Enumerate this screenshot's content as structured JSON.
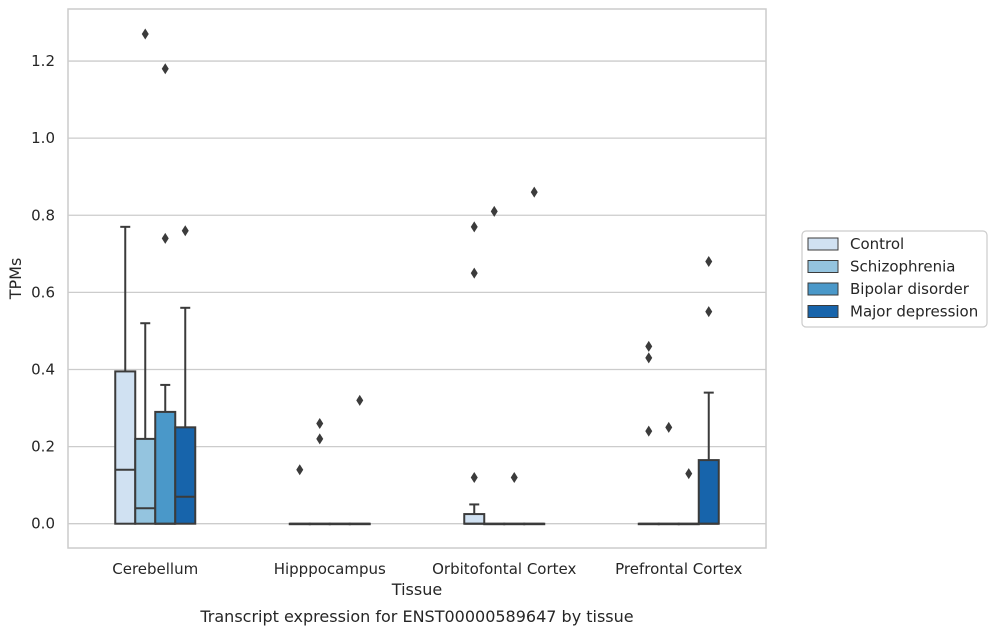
{
  "chart_data": {
    "type": "box",
    "title": "",
    "caption": "Transcript expression for ENST00000589647 by tissue",
    "xlabel": "Tissue",
    "ylabel": "TPMs",
    "ylim": [
      -0.063,
      1.335
    ],
    "yticks": [
      "0.0",
      "0.2",
      "0.4",
      "0.6",
      "0.8",
      "1.0",
      "1.2"
    ],
    "ytick_values": [
      0.0,
      0.2,
      0.4,
      0.6,
      0.8,
      1.0,
      1.2
    ],
    "grid": "horizontal",
    "legend_position": "right",
    "categories": [
      "Cerebellum",
      "Hipppocampus",
      "Orbitofontal Cortex",
      "Prefrontal Cortex"
    ],
    "series": [
      {
        "name": "Control",
        "color": "#d0e1f2",
        "boxes": [
          {
            "q1": 0.0,
            "median": 0.14,
            "q3": 0.395,
            "whisker_low": 0.0,
            "whisker_high": 0.77,
            "outliers": []
          },
          {
            "q1": 0.0,
            "median": 0.0,
            "q3": 0.0,
            "whisker_low": 0.0,
            "whisker_high": 0.0,
            "outliers": [
              0.14
            ]
          },
          {
            "q1": 0.0,
            "median": 0.0,
            "q3": 0.025,
            "whisker_low": 0.0,
            "whisker_high": 0.05,
            "outliers": [
              0.12,
              0.65,
              0.77
            ]
          },
          {
            "q1": 0.0,
            "median": 0.0,
            "q3": 0.0,
            "whisker_low": 0.0,
            "whisker_high": 0.0,
            "outliers": [
              0.24,
              0.43,
              0.46
            ]
          }
        ]
      },
      {
        "name": "Schizophrenia",
        "color": "#94c4df",
        "boxes": [
          {
            "q1": 0.0,
            "median": 0.04,
            "q3": 0.22,
            "whisker_low": 0.0,
            "whisker_high": 0.52,
            "outliers": [
              1.27
            ]
          },
          {
            "q1": 0.0,
            "median": 0.0,
            "q3": 0.0,
            "whisker_low": 0.0,
            "whisker_high": 0.0,
            "outliers": [
              0.22,
              0.26
            ]
          },
          {
            "q1": 0.0,
            "median": 0.0,
            "q3": 0.0,
            "whisker_low": 0.0,
            "whisker_high": 0.0,
            "outliers": [
              0.81
            ]
          },
          {
            "q1": 0.0,
            "median": 0.0,
            "q3": 0.0,
            "whisker_low": 0.0,
            "whisker_high": 0.0,
            "outliers": [
              0.25
            ]
          }
        ]
      },
      {
        "name": "Bipolar disorder",
        "color": "#4a98c9",
        "boxes": [
          {
            "q1": 0.0,
            "median": 0.0,
            "q3": 0.29,
            "whisker_low": 0.0,
            "whisker_high": 0.36,
            "outliers": [
              0.74,
              1.18
            ]
          },
          {
            "q1": 0.0,
            "median": 0.0,
            "q3": 0.0,
            "whisker_low": 0.0,
            "whisker_high": 0.0,
            "outliers": []
          },
          {
            "q1": 0.0,
            "median": 0.0,
            "q3": 0.0,
            "whisker_low": 0.0,
            "whisker_high": 0.0,
            "outliers": [
              0.12
            ]
          },
          {
            "q1": 0.0,
            "median": 0.0,
            "q3": 0.0,
            "whisker_low": 0.0,
            "whisker_high": 0.0,
            "outliers": [
              0.13
            ]
          }
        ]
      },
      {
        "name": "Major depression",
        "color": "#1764ab",
        "boxes": [
          {
            "q1": 0.0,
            "median": 0.07,
            "q3": 0.25,
            "whisker_low": 0.0,
            "whisker_high": 0.56,
            "outliers": [
              0.76
            ]
          },
          {
            "q1": 0.0,
            "median": 0.0,
            "q3": 0.0,
            "whisker_low": 0.0,
            "whisker_high": 0.0,
            "outliers": [
              0.32
            ]
          },
          {
            "q1": 0.0,
            "median": 0.0,
            "q3": 0.0,
            "whisker_low": 0.0,
            "whisker_high": 0.0,
            "outliers": [
              0.86
            ]
          },
          {
            "q1": 0.0,
            "median": 0.0,
            "q3": 0.165,
            "whisker_low": 0.0,
            "whisker_high": 0.34,
            "outliers": [
              0.55,
              0.68
            ]
          }
        ]
      }
    ]
  }
}
